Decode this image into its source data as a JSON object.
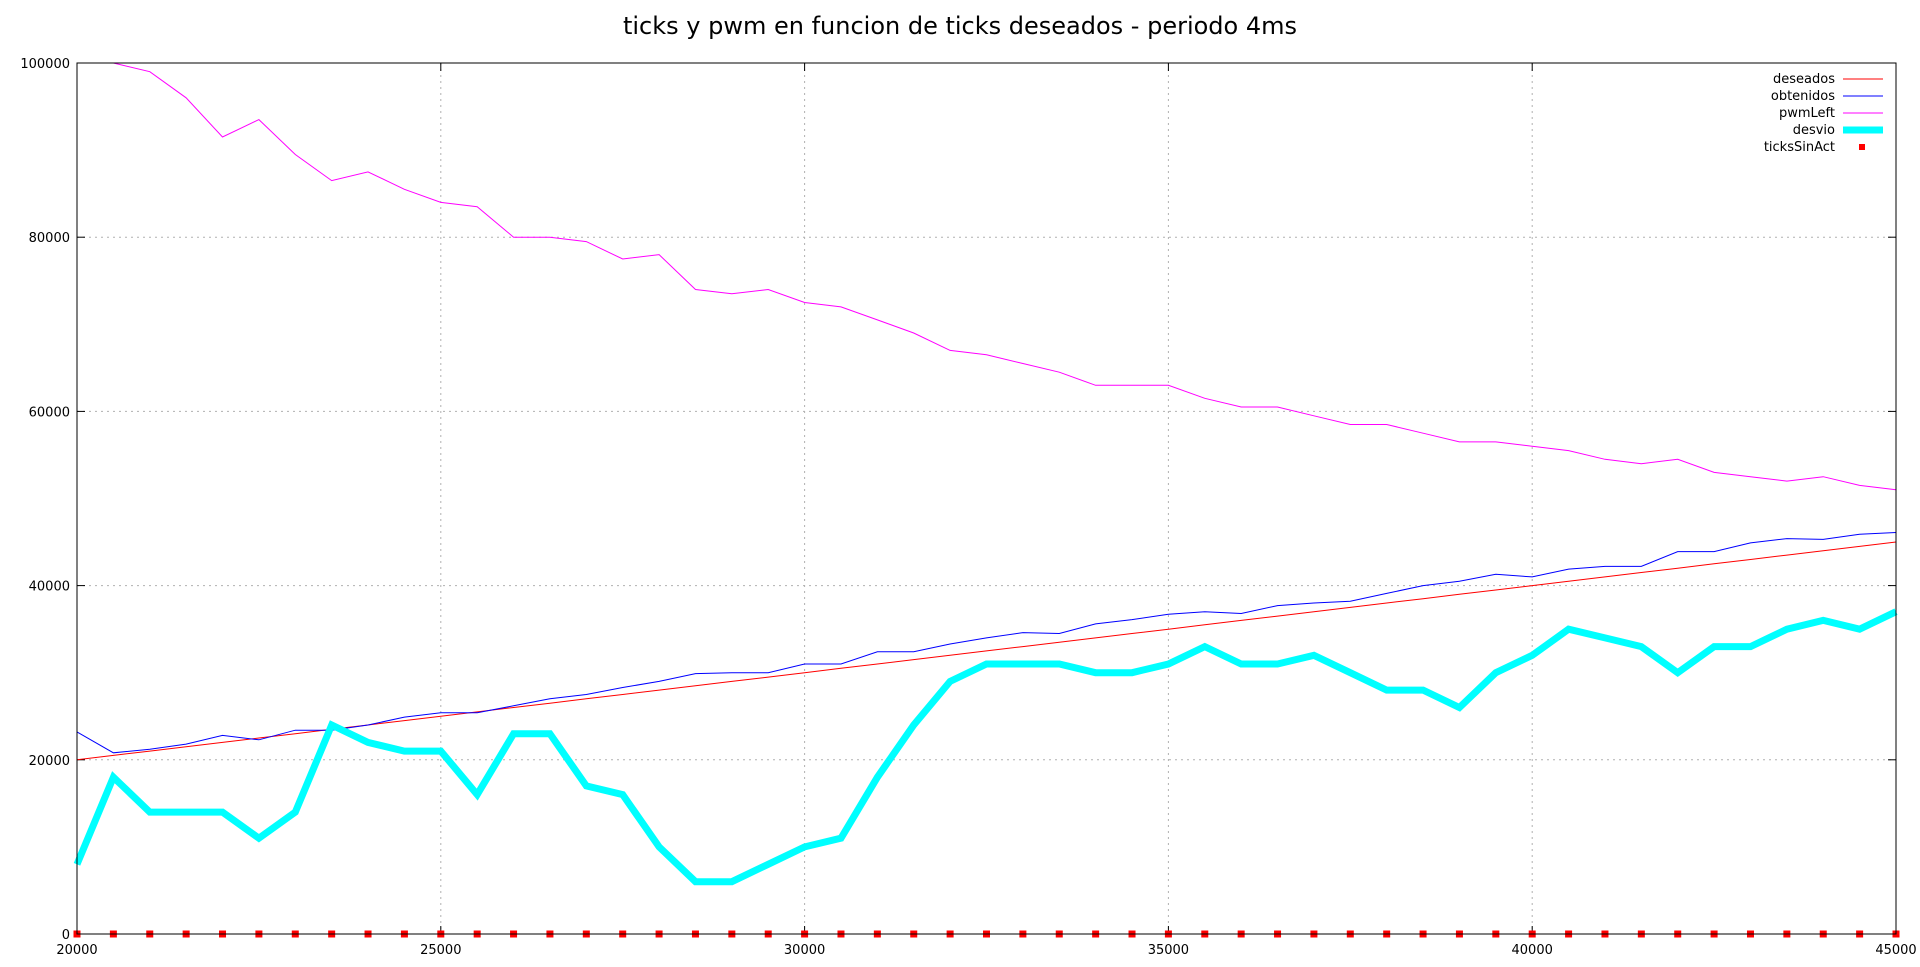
{
  "chart_data": {
    "type": "line",
    "title": "ticks y pwm en funcion de ticks deseados - periodo 4ms",
    "xlim": [
      20000,
      45000
    ],
    "ylim": [
      0,
      100000
    ],
    "xticks": [
      20000,
      25000,
      30000,
      35000,
      40000,
      45000
    ],
    "yticks": [
      0,
      20000,
      40000,
      60000,
      80000,
      100000
    ],
    "grid": true,
    "legend_position": "top-right",
    "x": [
      20000,
      20500,
      21000,
      21500,
      22000,
      22500,
      23000,
      23500,
      24000,
      24500,
      25000,
      25500,
      26000,
      26500,
      27000,
      27500,
      28000,
      28500,
      29000,
      29500,
      30000,
      30500,
      31000,
      31500,
      32000,
      32500,
      33000,
      33500,
      34000,
      34500,
      35000,
      35500,
      36000,
      36500,
      37000,
      37500,
      38000,
      38500,
      39000,
      39500,
      40000,
      40500,
      41000,
      41500,
      42000,
      42500,
      43000,
      43500,
      44000,
      44500,
      45000
    ],
    "series": [
      {
        "name": "deseados",
        "style": "line",
        "color": "#ff0000",
        "width": 1,
        "values": [
          20000,
          20500,
          21000,
          21500,
          22000,
          22500,
          23000,
          23500,
          24000,
          24500,
          25000,
          25500,
          26000,
          26500,
          27000,
          27500,
          28000,
          28500,
          29000,
          29500,
          30000,
          30500,
          31000,
          31500,
          32000,
          32500,
          33000,
          33500,
          34000,
          34500,
          35000,
          35500,
          36000,
          36500,
          37000,
          37500,
          38000,
          38500,
          39000,
          39500,
          40000,
          40500,
          41000,
          41500,
          42000,
          42500,
          43000,
          43500,
          44000,
          44500,
          45000
        ]
      },
      {
        "name": "obtenidos",
        "style": "line",
        "color": "#0000ff",
        "width": 1,
        "values": [
          23200,
          20800,
          21200,
          21800,
          22800,
          22300,
          23400,
          23400,
          24000,
          24900,
          25400,
          25400,
          26200,
          27000,
          27500,
          28300,
          29000,
          29900,
          30000,
          30000,
          31000,
          31000,
          32400,
          32400,
          33300,
          34000,
          34600,
          34500,
          35600,
          36100,
          36700,
          37000,
          36800,
          37700,
          38000,
          38200,
          39100,
          40000,
          40500,
          41300,
          41000,
          41900,
          42200,
          42200,
          43900,
          43900,
          44900,
          45400,
          45300,
          45900,
          46100
        ]
      },
      {
        "name": "pwmLeft",
        "style": "line",
        "color": "#ff00ff",
        "width": 1,
        "values": [
          100000,
          100000,
          99000,
          96000,
          91500,
          93500,
          89500,
          86500,
          87500,
          85500,
          84000,
          83500,
          80000,
          80000,
          79500,
          77500,
          78000,
          74000,
          73500,
          74000,
          72500,
          72000,
          70500,
          69000,
          67000,
          66500,
          65500,
          64500,
          63000,
          63000,
          63000,
          61500,
          60500,
          60500,
          59500,
          58500,
          58500,
          57500,
          56500,
          56500,
          56000,
          55500,
          54500,
          54000,
          54500,
          53000,
          52500,
          52000,
          52500,
          51500,
          51000
        ]
      },
      {
        "name": "desvio",
        "style": "line",
        "color": "#00ffff",
        "width": 7,
        "values": [
          8000,
          18000,
          14000,
          14000,
          14000,
          11000,
          14000,
          24000,
          22000,
          21000,
          21000,
          16000,
          23000,
          23000,
          17000,
          16000,
          10000,
          6000,
          6000,
          8000,
          10000,
          11000,
          18000,
          24000,
          29000,
          31000,
          31000,
          31000,
          30000,
          30000,
          31000,
          33000,
          31000,
          31000,
          32000,
          30000,
          28000,
          28000,
          26000,
          30000,
          32000,
          35000,
          34000,
          33000,
          30000,
          33000,
          33000,
          35000,
          36000,
          35000,
          37000
        ]
      },
      {
        "name": "ticksSinAct",
        "style": "points",
        "color": "#ff0000",
        "width": 1,
        "values": [
          0,
          0,
          0,
          0,
          0,
          0,
          0,
          0,
          0,
          0,
          0,
          0,
          0,
          0,
          0,
          0,
          0,
          0,
          0,
          0,
          0,
          0,
          0,
          0,
          0,
          0,
          0,
          0,
          0,
          0,
          0,
          0,
          0,
          0,
          0,
          0,
          0,
          0,
          0,
          0,
          0,
          0,
          0,
          0,
          0,
          0,
          0,
          0,
          0,
          0,
          0
        ]
      }
    ]
  }
}
